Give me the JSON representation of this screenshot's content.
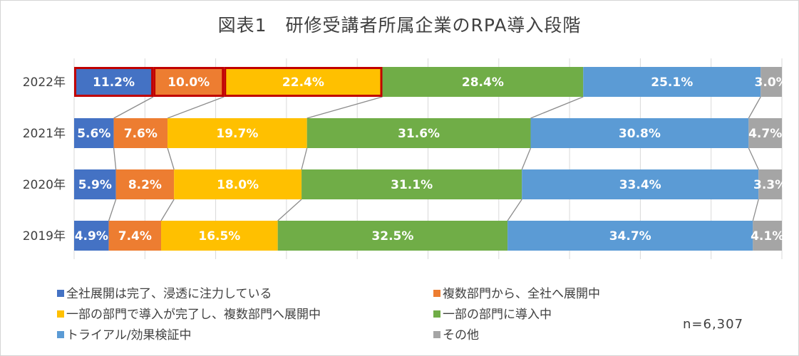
{
  "chart_data": {
    "type": "bar",
    "orientation": "horizontal",
    "stacked": "percent",
    "title": "図表1　研修受講者所属企業のRPA導入段階",
    "categories": [
      "2022年",
      "2021年",
      "2020年",
      "2019年"
    ],
    "series": [
      {
        "name": "全社展開は完了、浸透に注力している",
        "color": "#4472c4",
        "values": [
          11.2,
          5.6,
          5.9,
          4.9
        ],
        "labels": [
          "11.2%",
          "5.6%",
          "5.9%",
          "4.9%"
        ]
      },
      {
        "name": "複数部門から、全社へ展開中",
        "color": "#ed7d31",
        "values": [
          10.0,
          7.6,
          8.2,
          7.4
        ],
        "labels": [
          "10.0%",
          "7.6%",
          "8.2%",
          "7.4%"
        ]
      },
      {
        "name": "一部の部門で導入が完了し、複数部門へ展開中",
        "color": "#ffc000",
        "values": [
          22.4,
          19.7,
          18.0,
          16.5
        ],
        "labels": [
          "22.4%",
          "19.7%",
          "18.0%",
          "16.5%"
        ]
      },
      {
        "name": "一部の部門に導入中",
        "color": "#70ad47",
        "values": [
          28.4,
          31.6,
          31.1,
          32.5
        ],
        "labels": [
          "28.4%",
          "31.6%",
          "31.1%",
          "32.5%"
        ]
      },
      {
        "name": "トライアル/効果検証中",
        "color": "#5b9bd5",
        "values": [
          25.1,
          30.8,
          33.4,
          34.7
        ],
        "labels": [
          "25.1%",
          "30.8%",
          "33.4%",
          "34.7%"
        ]
      },
      {
        "name": "その他",
        "color": "#a5a5a5",
        "values": [
          3.0,
          4.7,
          3.3,
          4.1
        ],
        "labels": [
          "3.0%",
          "4.7%",
          "3.3%",
          "4.1%"
        ]
      }
    ],
    "highlighted": {
      "category": "2022年",
      "series_indices": [
        0,
        1,
        2
      ],
      "color": "#c00000"
    },
    "xlim": [
      0,
      100
    ],
    "grid": true,
    "legend_position": "bottom",
    "note": "n=6,307"
  }
}
